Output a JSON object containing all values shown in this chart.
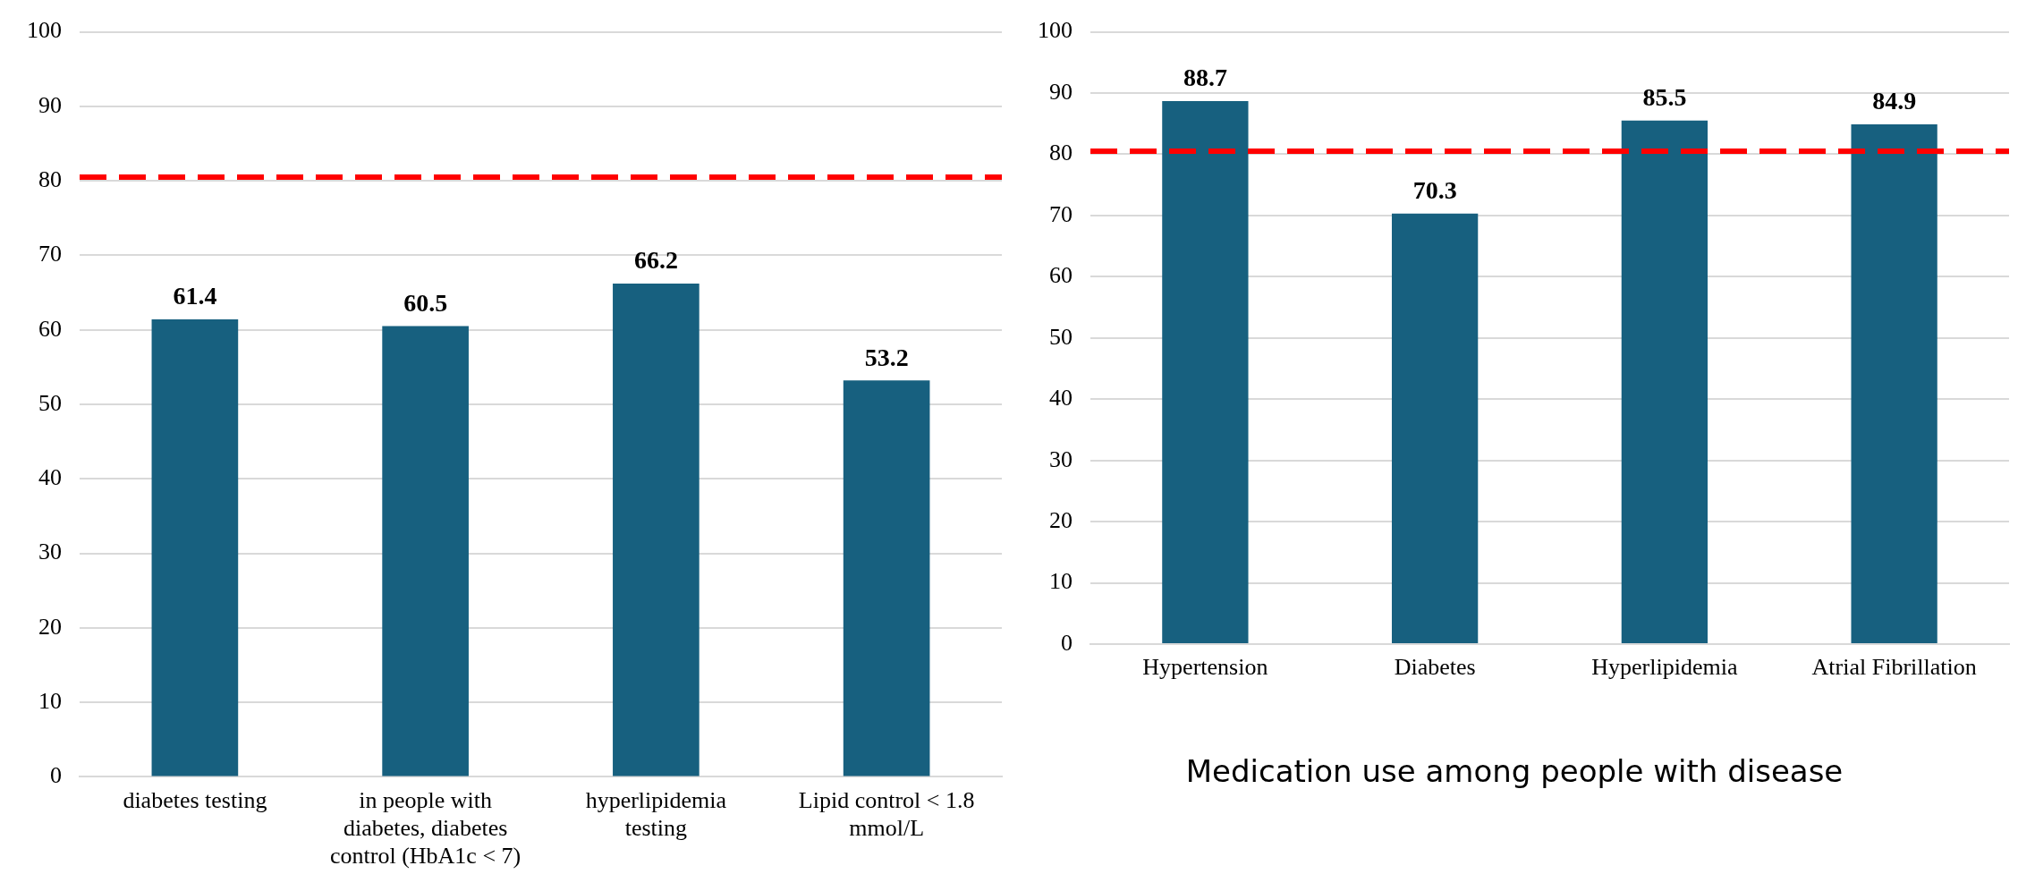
{
  "chart_data": [
    {
      "type": "bar",
      "categories": [
        "diabetes testing",
        "in people with diabetes, diabetes control (HbA1c < 7)",
        "hyperlipidemia testing",
        "Lipid control < 1.8 mmol/L"
      ],
      "values": [
        61.4,
        60.5,
        66.2,
        53.2
      ],
      "color": "#17607f",
      "data_labels": true,
      "ylim": [
        0,
        100
      ],
      "yticks": [
        0,
        10,
        20,
        30,
        40,
        50,
        60,
        70,
        80,
        90,
        100
      ],
      "grid": "y",
      "legend": false,
      "ref_lines": [
        {
          "axis": "y",
          "value": 80.5,
          "color": "#ff0000",
          "line_style": "dashed"
        }
      ]
    },
    {
      "type": "bar",
      "title": "Medication use among people with disease",
      "categories": [
        "Hypertension",
        "Diabetes",
        "Hyperlipidemia",
        "Atrial Fibrillation"
      ],
      "values": [
        88.7,
        70.3,
        85.5,
        84.9
      ],
      "color": "#17607f",
      "data_labels": true,
      "ylim": [
        0,
        100
      ],
      "yticks": [
        0,
        10,
        20,
        30,
        40,
        50,
        60,
        70,
        80,
        90,
        100
      ],
      "grid": "y",
      "legend": false,
      "ref_lines": [
        {
          "axis": "y",
          "value": 80.5,
          "color": "#ff0000",
          "line_style": "dashed"
        }
      ]
    }
  ]
}
